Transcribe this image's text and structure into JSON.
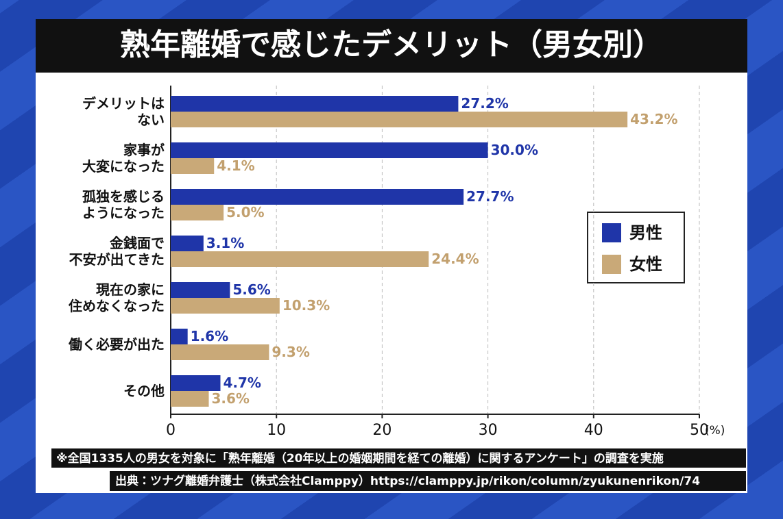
{
  "chart_data": {
    "type": "bar",
    "orientation": "horizontal",
    "title": "熟年離婚で感じたデメリット（男女別）",
    "categories": [
      "デメリットは\nない",
      "家事が\n大変になった",
      "孤独を感じる\nようになった",
      "金銭面で\n不安が出てきた",
      "現在の家に\n住めなくなった",
      "働く必要が出た",
      "その他"
    ],
    "series": [
      {
        "name": "男性",
        "color": "#1f35a8",
        "label_color": "#1f35a8",
        "values": [
          27.2,
          30.0,
          27.7,
          3.1,
          5.6,
          1.6,
          4.7
        ],
        "value_labels": [
          "27.2%",
          "30.0%",
          "27.7%",
          "3.1%",
          "5.6%",
          "1.6%",
          "4.7%"
        ]
      },
      {
        "name": "女性",
        "color": "#c9a978",
        "label_color": "#c2a06e",
        "values": [
          43.2,
          4.1,
          5.0,
          24.4,
          10.3,
          9.3,
          3.6
        ],
        "value_labels": [
          "43.2%",
          "4.1%",
          "5.0%",
          "24.4%",
          "10.3%",
          "9.3%",
          "3.6%"
        ]
      }
    ],
    "xlim": [
      0,
      50
    ],
    "xticks": [
      0,
      10,
      20,
      30,
      40,
      50
    ],
    "x_unit": "(%)",
    "grid": true,
    "legend": "right",
    "note": "※全国1335人の男女を対象に「熟年離婚（20年以上の婚姻期間を経ての離婚）に関するアンケート」の調査を実施",
    "source": "出典：ツナグ離婚弁護士（株式会社Clamppy）https://clamppy.jp/rikon/column/zyukunenrikon/74"
  }
}
